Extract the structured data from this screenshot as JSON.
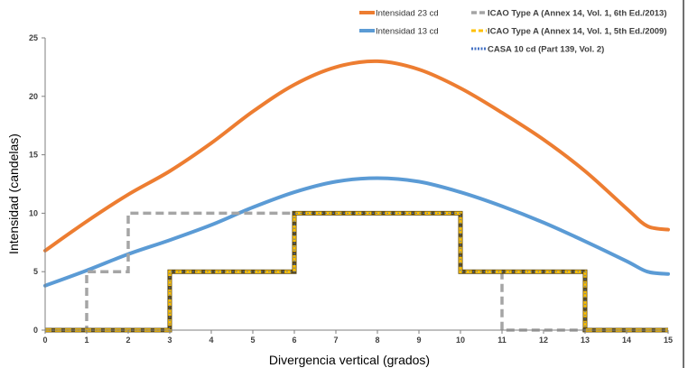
{
  "chart_data": {
    "type": "line",
    "title": "",
    "xlabel": "Divergencia vertical (grados)",
    "ylabel": "Intensidad (candelas)",
    "xlim": [
      0,
      15
    ],
    "ylim": [
      0,
      25
    ],
    "x_ticks": [
      0,
      1,
      2,
      3,
      4,
      5,
      6,
      7,
      8,
      9,
      10,
      11,
      12,
      13,
      14,
      15
    ],
    "y_ticks": [
      0,
      5,
      10,
      15,
      20,
      25
    ],
    "grid": false,
    "legend_position": "top-right",
    "series": [
      {
        "name": "Intensidad 23 cd",
        "style": "smooth",
        "color": "#ED7D31",
        "x": [
          0,
          1,
          2,
          3,
          4,
          5,
          6,
          7,
          8,
          9,
          10,
          11,
          12,
          13,
          14,
          14.5,
          15
        ],
        "y": [
          6.8,
          9.3,
          11.6,
          13.6,
          16.0,
          18.7,
          21.0,
          22.5,
          23.0,
          22.3,
          20.7,
          18.6,
          16.3,
          13.6,
          10.4,
          8.9,
          8.6
        ]
      },
      {
        "name": "Intensidad 13 cd",
        "style": "smooth",
        "color": "#5B9BD5",
        "x": [
          0,
          1,
          2,
          3,
          4,
          5,
          6,
          7,
          8,
          9,
          10,
          11,
          12,
          13,
          14,
          14.5,
          15
        ],
        "y": [
          3.8,
          5.1,
          6.5,
          7.7,
          9.0,
          10.5,
          11.8,
          12.7,
          13.0,
          12.7,
          11.8,
          10.6,
          9.2,
          7.6,
          5.9,
          5.0,
          4.8
        ]
      },
      {
        "name": "ICAO Type A (Annex 14, Vol. 1, 6th Ed./2013)",
        "style": "step-dashed",
        "color": "#A5A5A5",
        "x": [
          0,
          1,
          1,
          2,
          2,
          3,
          3,
          5,
          5,
          6,
          6,
          10,
          10,
          11,
          11,
          15
        ],
        "y": [
          0,
          0,
          5,
          5,
          10,
          10,
          10,
          10,
          10,
          10,
          10,
          10,
          5,
          5,
          0,
          0
        ]
      },
      {
        "name": "ICAO Type A (Annex 14, Vol. 1, 5th Ed./2009)",
        "style": "step-dashed-yellow",
        "color": "#FFC000",
        "x": [
          0,
          3,
          3,
          6,
          6,
          10,
          10,
          13,
          13,
          15
        ],
        "y": [
          0,
          0,
          5,
          5,
          10,
          10,
          5,
          5,
          0,
          0
        ]
      },
      {
        "name": "CASA 10 cd (Part 139, Vol. 2)",
        "style": "step-dotted",
        "color": "#4472C4",
        "x": [
          0,
          3,
          3,
          6,
          6,
          10,
          10,
          13,
          13,
          15
        ],
        "y": [
          0,
          0,
          5,
          5,
          10,
          10,
          5,
          5,
          0,
          0
        ]
      }
    ]
  }
}
